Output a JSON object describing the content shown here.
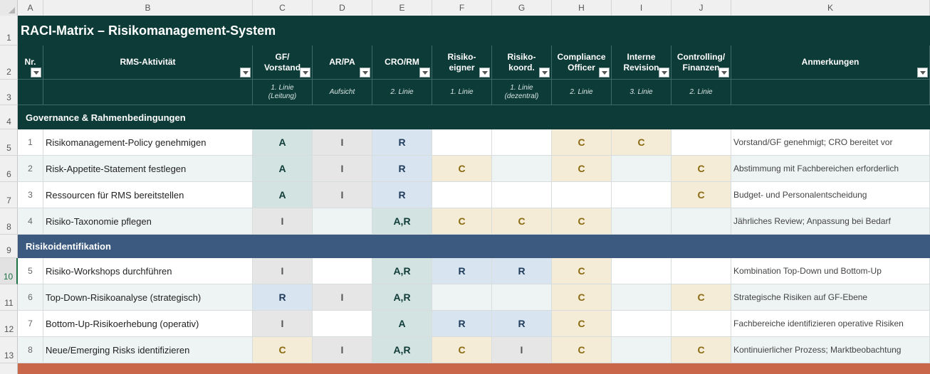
{
  "columns": [
    "A",
    "B",
    "C",
    "D",
    "E",
    "F",
    "G",
    "H",
    "I",
    "J",
    "K"
  ],
  "row_numbers": [
    "1",
    "2",
    "3",
    "4",
    "5",
    "6",
    "7",
    "8",
    "9",
    "10",
    "11",
    "12",
    "13"
  ],
  "active_row": "10",
  "title": "RACI-Matrix – Risikomanagement-System",
  "headers": [
    "Nr.",
    "RMS-Aktivität",
    "GF/\nVorstand",
    "AR/PA",
    "CRO/RM",
    "Risiko-\neigner",
    "Risiko-\nkoord.",
    "Compliance\nOfficer",
    "Interne\nRevision",
    "Controlling/\nFinanzen",
    "Anmerkungen"
  ],
  "subheaders": [
    "",
    "",
    "1. Linie\n(Leitung)",
    "Aufsicht",
    "2. Linie",
    "1. Linie",
    "1. Linie\n(dezentral)",
    "2. Linie",
    "3. Linie",
    "2. Linie",
    ""
  ],
  "colors": {
    "header_bg": "#0d3b38",
    "section_governance": "#0d3b38",
    "section_identification": "#3c5a80",
    "section_next": "#c8674a",
    "row_alt": "#eef4f3"
  },
  "sections": [
    {
      "label": "Governance & Rahmenbedingungen",
      "color_key": "section_governance",
      "rows": [
        {
          "nr": "1",
          "activity": "Risikomanagement-Policy genehmigen",
          "raci": [
            "A",
            "I",
            "R",
            "",
            "",
            "C",
            "C",
            ""
          ],
          "note": "Vorstand/GF genehmigt; CRO bereitet vor"
        },
        {
          "nr": "2",
          "activity": "Risk-Appetite-Statement festlegen",
          "raci": [
            "A",
            "I",
            "R",
            "C",
            "",
            "C",
            "",
            "C"
          ],
          "note": "Abstimmung mit Fachbereichen erforderlich"
        },
        {
          "nr": "3",
          "activity": "Ressourcen für RMS bereitstellen",
          "raci": [
            "A",
            "I",
            "R",
            "",
            "",
            "",
            "",
            "C"
          ],
          "note": "Budget- und Personalentscheidung"
        },
        {
          "nr": "4",
          "activity": "Risiko-Taxonomie pflegen",
          "raci": [
            "I",
            "",
            "A,R",
            "C",
            "C",
            "C",
            "",
            ""
          ],
          "note": "Jährliches Review; Anpassung bei Bedarf"
        }
      ]
    },
    {
      "label": "Risikoidentifikation",
      "color_key": "section_identification",
      "rows": [
        {
          "nr": "5",
          "activity": "Risiko-Workshops durchführen",
          "raci": [
            "I",
            "",
            "A,R",
            "R",
            "R",
            "C",
            "",
            ""
          ],
          "note": "Kombination Top-Down und Bottom-Up"
        },
        {
          "nr": "6",
          "activity": "Top-Down-Risikoanalyse (strategisch)",
          "raci": [
            "R",
            "I",
            "A,R",
            "",
            "",
            "C",
            "",
            "C"
          ],
          "note": "Strategische Risiken auf GF-Ebene"
        },
        {
          "nr": "7",
          "activity": "Bottom-Up-Risikoerhebung (operativ)",
          "raci": [
            "I",
            "",
            "A",
            "R",
            "R",
            "C",
            "",
            ""
          ],
          "note": "Fachbereiche identifizieren operative Risiken"
        },
        {
          "nr": "8",
          "activity": "Neue/Emerging Risks identifizieren",
          "raci": [
            "C",
            "I",
            "A,R",
            "C",
            "I",
            "C",
            "",
            "C"
          ],
          "note": "Kontinuierlicher Prozess; Marktbeobachtung"
        }
      ]
    },
    {
      "label": "",
      "color_key": "section_next",
      "rows": []
    }
  ]
}
